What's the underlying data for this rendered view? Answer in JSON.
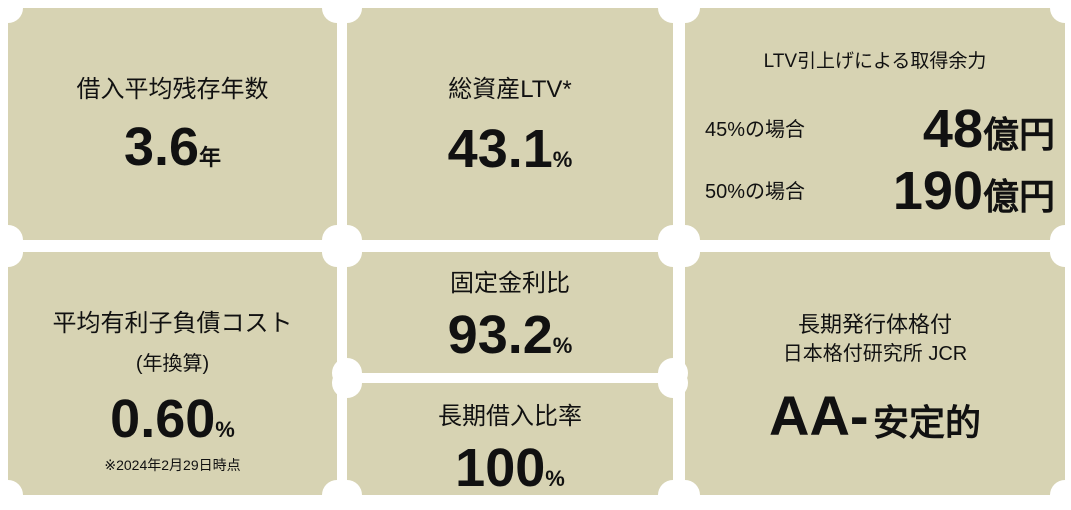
{
  "cards": [
    {
      "label": "借入平均残存年数",
      "value": "3.6",
      "unit": "年"
    },
    {
      "label": "総資産LTV*",
      "value": "43.1",
      "unit": "%"
    },
    {
      "title": "LTV引上げによる取得余力",
      "rows": [
        {
          "label": "45%の場合",
          "value": "48",
          "unit": "億円"
        },
        {
          "label": "50%の場合",
          "value": "190",
          "unit": "億円"
        }
      ]
    },
    {
      "label": "平均有利子負債コスト",
      "sublabel": "(年換算)",
      "value": "0.60",
      "unit": "%",
      "note": "※2024年2月29日時点"
    },
    {
      "label": "固定金利比",
      "value": "93.2",
      "unit": "%"
    },
    {
      "label": "長期借入比率",
      "value": "100",
      "unit": "%"
    },
    {
      "label": "長期発行体格付",
      "sublabel": "日本格付研究所 JCR",
      "value": "AA-",
      "unit": "安定的"
    }
  ]
}
